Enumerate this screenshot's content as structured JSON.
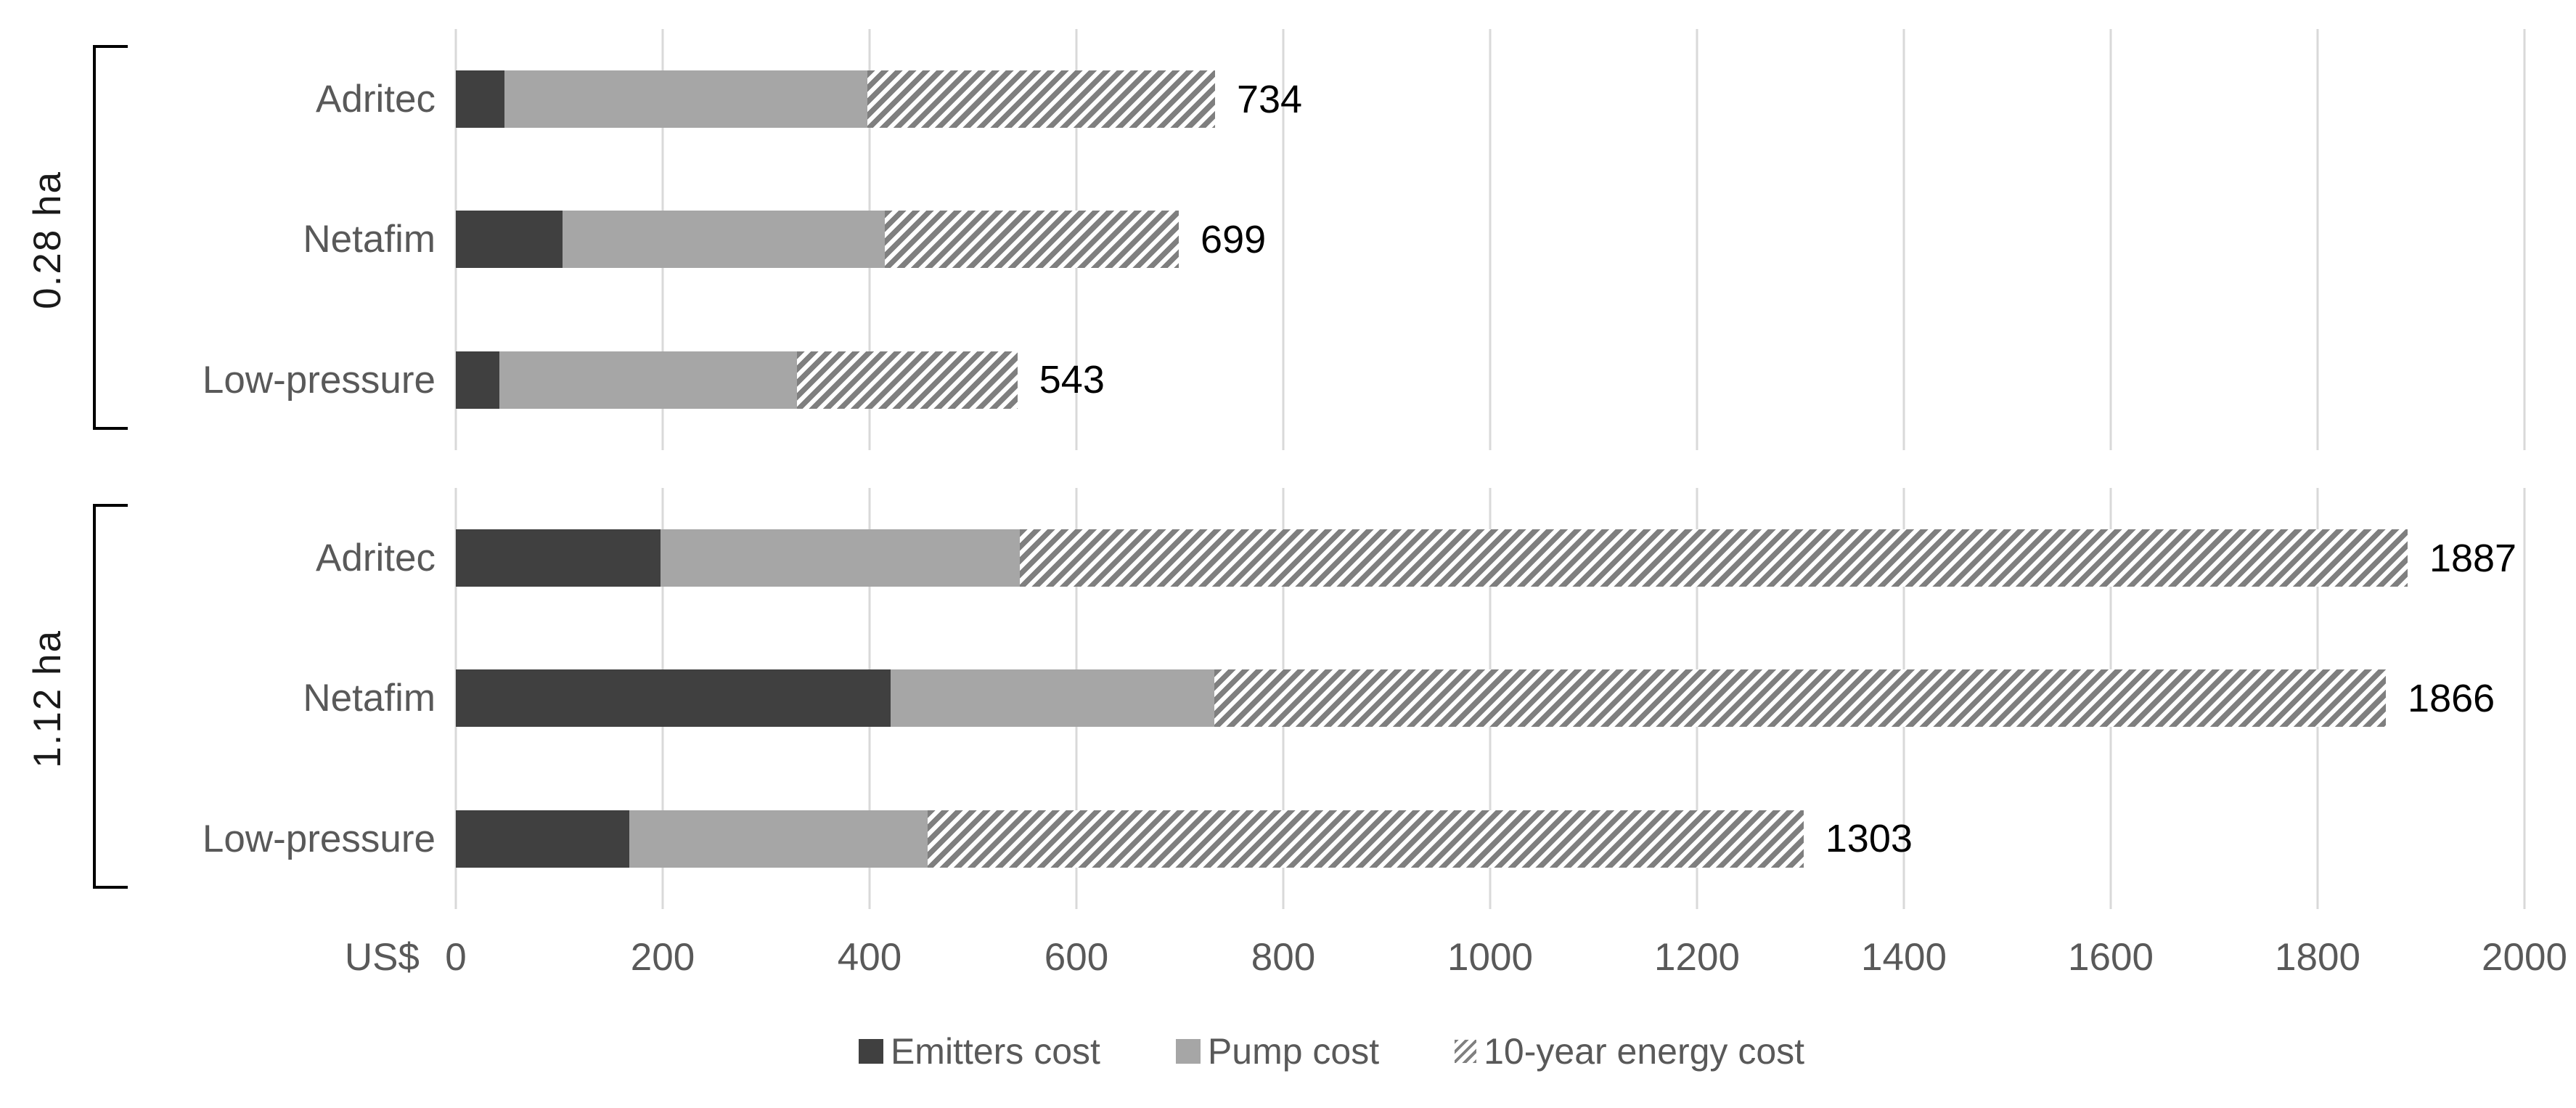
{
  "chart_data": {
    "type": "bar",
    "orientation": "horizontal",
    "stacked": true,
    "grid": true,
    "unit_label": "US$",
    "axis": {
      "min": 0,
      "max": 2000,
      "step": 200,
      "ticks": [
        0,
        200,
        400,
        600,
        800,
        1000,
        1200,
        1400,
        1600,
        1800,
        2000
      ]
    },
    "segment_keys": [
      "emitters",
      "pump",
      "energy"
    ],
    "series_names": [
      "Emitters cost",
      "Pump cost",
      "10-year energy cost"
    ],
    "legend": [
      {
        "label": "Emitters cost",
        "swatch": "solid-dark"
      },
      {
        "label": "Pump cost",
        "swatch": "solid-gray"
      },
      {
        "label": "10-year energy cost",
        "swatch": "hatched"
      }
    ],
    "legend_position": "bottom-center",
    "groups": [
      {
        "label": "0.28 ha",
        "rows": [
          {
            "category": "Adritec",
            "values": [
              47,
              351,
              336
            ],
            "total": 734
          },
          {
            "category": "Netafim",
            "values": [
              103,
              312,
              284
            ],
            "total": 699
          },
          {
            "category": "Low-pressure",
            "values": [
              42,
              288,
              213
            ],
            "total": 543
          }
        ]
      },
      {
        "label": "1.12 ha",
        "rows": [
          {
            "category": "Adritec",
            "values": [
              198,
              347,
              1342
            ],
            "total": 1887
          },
          {
            "category": "Netafim",
            "values": [
              420,
              313,
              1133
            ],
            "total": 1866
          },
          {
            "category": "Low-pressure",
            "values": [
              168,
              288,
              847
            ],
            "total": 1303
          }
        ]
      }
    ],
    "colors": {
      "emitters": "#404040",
      "pump": "#a6a6a6",
      "energy_hatch_stripe": "#7f7f7f",
      "energy_hatch_background": "#ffffff",
      "gridline": "#d9d9d9",
      "axis_text": "#595959",
      "data_label_text": "#000000",
      "bracket": "#000000"
    }
  }
}
